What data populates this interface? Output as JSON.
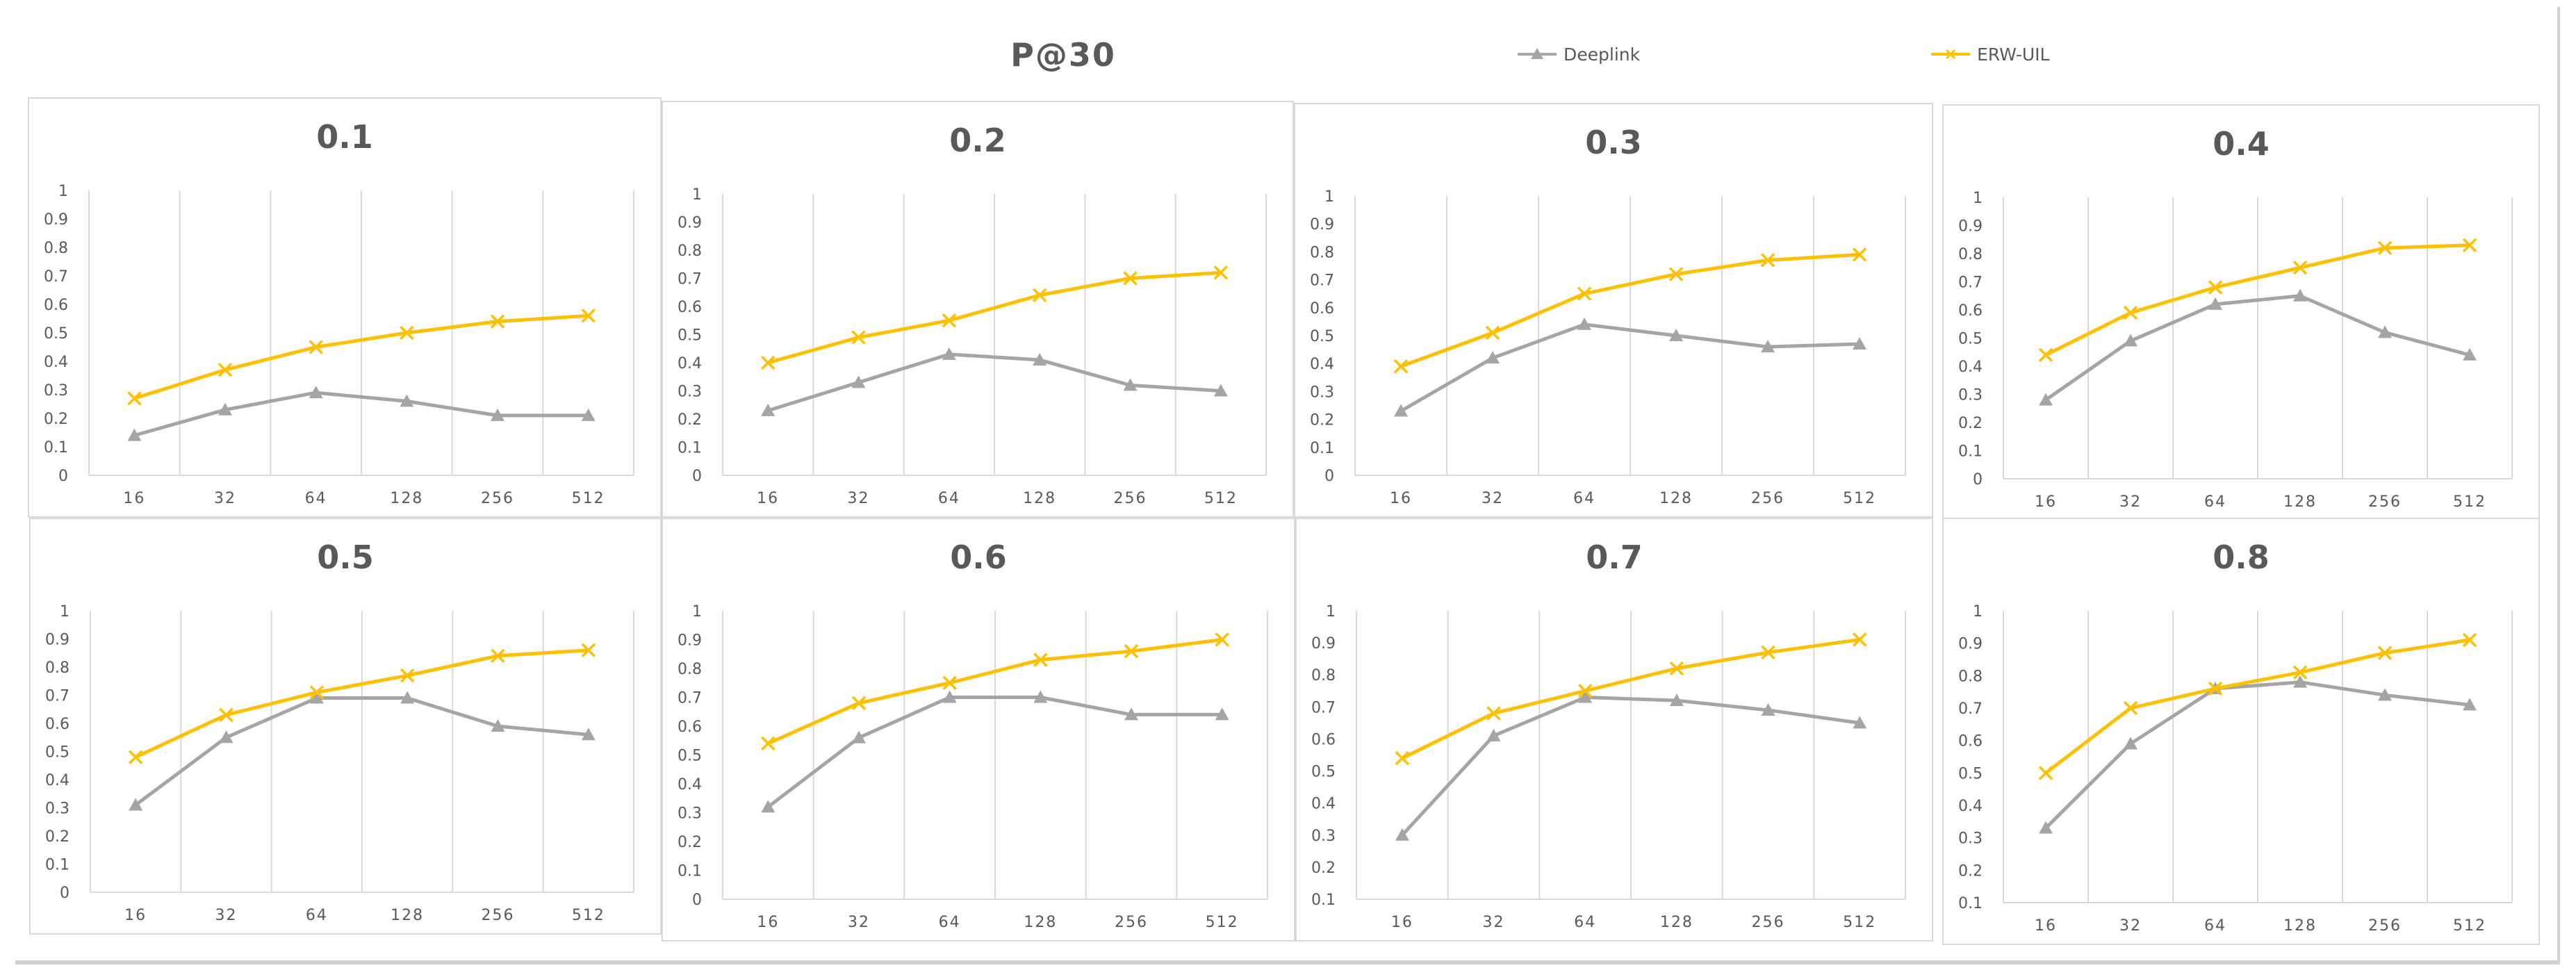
{
  "title": "P@30",
  "legend": [
    {
      "name": "Deeplink",
      "color": "#a5a5a5",
      "marker": "triangle-icon"
    },
    {
      "name": "ERW-UIL",
      "color": "#ffc000",
      "marker": "x-icon"
    }
  ],
  "chart_data": [
    {
      "type": "line",
      "title": "0.1",
      "categories": [
        "16",
        "32",
        "64",
        "128",
        "256",
        "512"
      ],
      "ylim": [
        0,
        1
      ],
      "yticks": [
        "0",
        "0.1",
        "0.2",
        "0.3",
        "0.4",
        "0.5",
        "0.6",
        "0.7",
        "0.8",
        "0.9",
        "1"
      ],
      "series": [
        {
          "name": "Deeplink",
          "values": [
            0.14,
            0.23,
            0.29,
            0.26,
            0.21,
            0.21
          ]
        },
        {
          "name": "ERW-UIL",
          "values": [
            0.27,
            0.37,
            0.45,
            0.5,
            0.54,
            0.56
          ]
        }
      ]
    },
    {
      "type": "line",
      "title": "0.2",
      "categories": [
        "16",
        "32",
        "64",
        "128",
        "256",
        "512"
      ],
      "ylim": [
        0,
        1
      ],
      "yticks": [
        "0",
        "0.1",
        "0.2",
        "0.3",
        "0.4",
        "0.5",
        "0.6",
        "0.7",
        "0.8",
        "0.9",
        "1"
      ],
      "series": [
        {
          "name": "Deeplink",
          "values": [
            0.23,
            0.33,
            0.43,
            0.41,
            0.32,
            0.3
          ]
        },
        {
          "name": "ERW-UIL",
          "values": [
            0.4,
            0.49,
            0.55,
            0.64,
            0.7,
            0.72
          ]
        }
      ]
    },
    {
      "type": "line",
      "title": "0.3",
      "categories": [
        "16",
        "32",
        "64",
        "128",
        "256",
        "512"
      ],
      "ylim": [
        0,
        1
      ],
      "yticks": [
        "0",
        "0.1",
        "0.2",
        "0.3",
        "0.4",
        "0.5",
        "0.6",
        "0.7",
        "0.8",
        "0.9",
        "1"
      ],
      "series": [
        {
          "name": "Deeplink",
          "values": [
            0.23,
            0.42,
            0.54,
            0.5,
            0.46,
            0.47
          ]
        },
        {
          "name": "ERW-UIL",
          "values": [
            0.39,
            0.51,
            0.65,
            0.72,
            0.77,
            0.79
          ]
        }
      ]
    },
    {
      "type": "line",
      "title": "0.4",
      "categories": [
        "16",
        "32",
        "64",
        "128",
        "256",
        "512"
      ],
      "ylim": [
        0,
        1
      ],
      "yticks": [
        "0",
        "0.1",
        "0.2",
        "0.3",
        "0.4",
        "0.5",
        "0.6",
        "0.7",
        "0.8",
        "0.9",
        "1"
      ],
      "series": [
        {
          "name": "Deeplink",
          "values": [
            0.28,
            0.49,
            0.62,
            0.65,
            0.52,
            0.44
          ]
        },
        {
          "name": "ERW-UIL",
          "values": [
            0.44,
            0.59,
            0.68,
            0.75,
            0.82,
            0.83
          ]
        }
      ]
    },
    {
      "type": "line",
      "title": "0.5",
      "categories": [
        "16",
        "32",
        "64",
        "128",
        "256",
        "512"
      ],
      "ylim": [
        0,
        1
      ],
      "yticks": [
        "0",
        "0.1",
        "0.2",
        "0.3",
        "0.4",
        "0.5",
        "0.6",
        "0.7",
        "0.8",
        "0.9",
        "1"
      ],
      "series": [
        {
          "name": "Deeplink",
          "values": [
            0.31,
            0.55,
            0.69,
            0.69,
            0.59,
            0.56
          ]
        },
        {
          "name": "ERW-UIL",
          "values": [
            0.48,
            0.63,
            0.71,
            0.77,
            0.84,
            0.86
          ]
        }
      ]
    },
    {
      "type": "line",
      "title": "0.6",
      "categories": [
        "16",
        "32",
        "64",
        "128",
        "256",
        "512"
      ],
      "ylim": [
        0,
        1
      ],
      "yticks": [
        "0",
        "0.1",
        "0.2",
        "0.3",
        "0.4",
        "0.5",
        "0.6",
        "0.7",
        "0.8",
        "0.9",
        "1"
      ],
      "series": [
        {
          "name": "Deeplink",
          "values": [
            0.32,
            0.56,
            0.7,
            0.7,
            0.64,
            0.64
          ]
        },
        {
          "name": "ERW-UIL",
          "values": [
            0.54,
            0.68,
            0.75,
            0.83,
            0.86,
            0.9
          ]
        }
      ]
    },
    {
      "type": "line",
      "title": "0.7",
      "categories": [
        "16",
        "32",
        "64",
        "128",
        "256",
        "512"
      ],
      "ylim": [
        0.1,
        1
      ],
      "yticks": [
        "0.1",
        "0.2",
        "0.3",
        "0.4",
        "0.5",
        "0.6",
        "0.7",
        "0.8",
        "0.9",
        "1"
      ],
      "series": [
        {
          "name": "Deeplink",
          "values": [
            0.3,
            0.61,
            0.73,
            0.72,
            0.69,
            0.65
          ]
        },
        {
          "name": "ERW-UIL",
          "values": [
            0.54,
            0.68,
            0.75,
            0.82,
            0.87,
            0.91
          ]
        }
      ]
    },
    {
      "type": "line",
      "title": "0.8",
      "categories": [
        "16",
        "32",
        "64",
        "128",
        "256",
        "512"
      ],
      "ylim": [
        0.1,
        1
      ],
      "yticks": [
        "0.1",
        "0.2",
        "0.3",
        "0.4",
        "0.5",
        "0.6",
        "0.7",
        "0.8",
        "0.9",
        "1"
      ],
      "series": [
        {
          "name": "Deeplink",
          "values": [
            0.33,
            0.59,
            0.76,
            0.78,
            0.74,
            0.71
          ]
        },
        {
          "name": "ERW-UIL",
          "values": [
            0.5,
            0.7,
            0.76,
            0.81,
            0.87,
            0.91
          ]
        }
      ]
    }
  ]
}
